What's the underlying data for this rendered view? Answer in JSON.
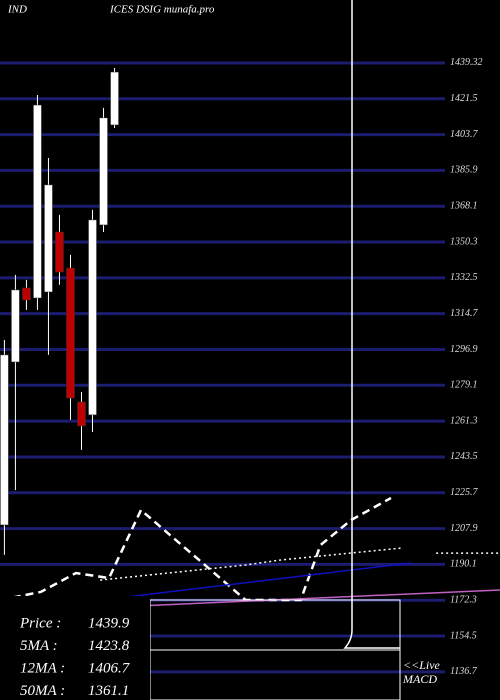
{
  "chart_data": {
    "type": "candlestick",
    "title_left": "IND",
    "title_right": "ICES DSIG munafa.pro",
    "xlim": [
      -0.4,
      45
    ],
    "ylim": [
      1122.7,
      1470.6
    ],
    "yticks": [
      1439.32,
      1421.5,
      1403.7,
      1385.9,
      1368.1,
      1350.3,
      1332.5,
      1314.7,
      1296.9,
      1279.1,
      1261.3,
      1243.5,
      1225.7,
      1207.9,
      1190.1,
      1172.3,
      1154.5,
      1136.7
    ],
    "grid": true,
    "grid_color": "#1c1c70",
    "up_color": "#ffffff",
    "down_color": "#c00000",
    "candles": {
      "open": [
        1209.7,
        1290.7,
        1327.5,
        1322.5,
        1325.5,
        1355.3,
        1337.4,
        1270.8,
        1264.4,
        1358.8,
        1408.5
      ],
      "close": [
        1294.2,
        1326.5,
        1321.5,
        1418.4,
        1378.7,
        1335.4,
        1272.8,
        1258.9,
        1361.3,
        1412.0,
        1434.8
      ],
      "high": [
        1301.6,
        1334.0,
        1331.5,
        1423.4,
        1392.1,
        1363.8,
        1343.9,
        1275.8,
        1366.3,
        1417.0,
        1436.8
      ],
      "low": [
        1194.8,
        1227.0,
        1316.6,
        1316.6,
        1294.2,
        1329.0,
        1261.9,
        1247.0,
        1255.9,
        1355.3,
        1407.0
      ]
    },
    "series": [
      {
        "color": "#ffffff",
        "style": "dashed",
        "x": [
          -0.4,
          3.3,
          6.5,
          9.5,
          12.4,
          21.9,
          26.9,
          28.7,
          31.5,
          35.1
        ],
        "values": [
          1172.4,
          1176.4,
          1185.8,
          1183.3,
          1217.1,
          1172.4,
          1172.4,
          1199.7,
          1212.2,
          1223.1
        ]
      },
      {
        "color": "#ffffff",
        "style": "dotted",
        "x": [
          8.7,
          21.9,
          25.1,
          36.0
        ],
        "values": [
          1182.3,
          1189.8,
          1192.3,
          1198.2
        ]
      },
      {
        "color": "#ffffff",
        "style": "dotted",
        "x": [
          39.2,
          45
        ],
        "values": [
          1195.7,
          1195.7
        ]
      },
      {
        "color": "#1010c0",
        "style": "solid",
        "x": [
          -0.4,
          36.9
        ],
        "values": [
          1166.4,
          1190.8
        ]
      },
      {
        "color": "#c060c0",
        "style": "solid",
        "x": [
          -0.4,
          45
        ],
        "values": [
          1166.4,
          1177.4
        ]
      }
    ],
    "legend": [
      {
        "label": "Price  :",
        "value": 1439.9
      },
      {
        "label": "5MA :",
        "value": 1423.8
      },
      {
        "label": "12MA :",
        "value": 1406.7
      },
      {
        "label": "50MA :",
        "value": 1361.1
      }
    ],
    "live_label": "<<Live",
    "panel_label": "MACD"
  }
}
